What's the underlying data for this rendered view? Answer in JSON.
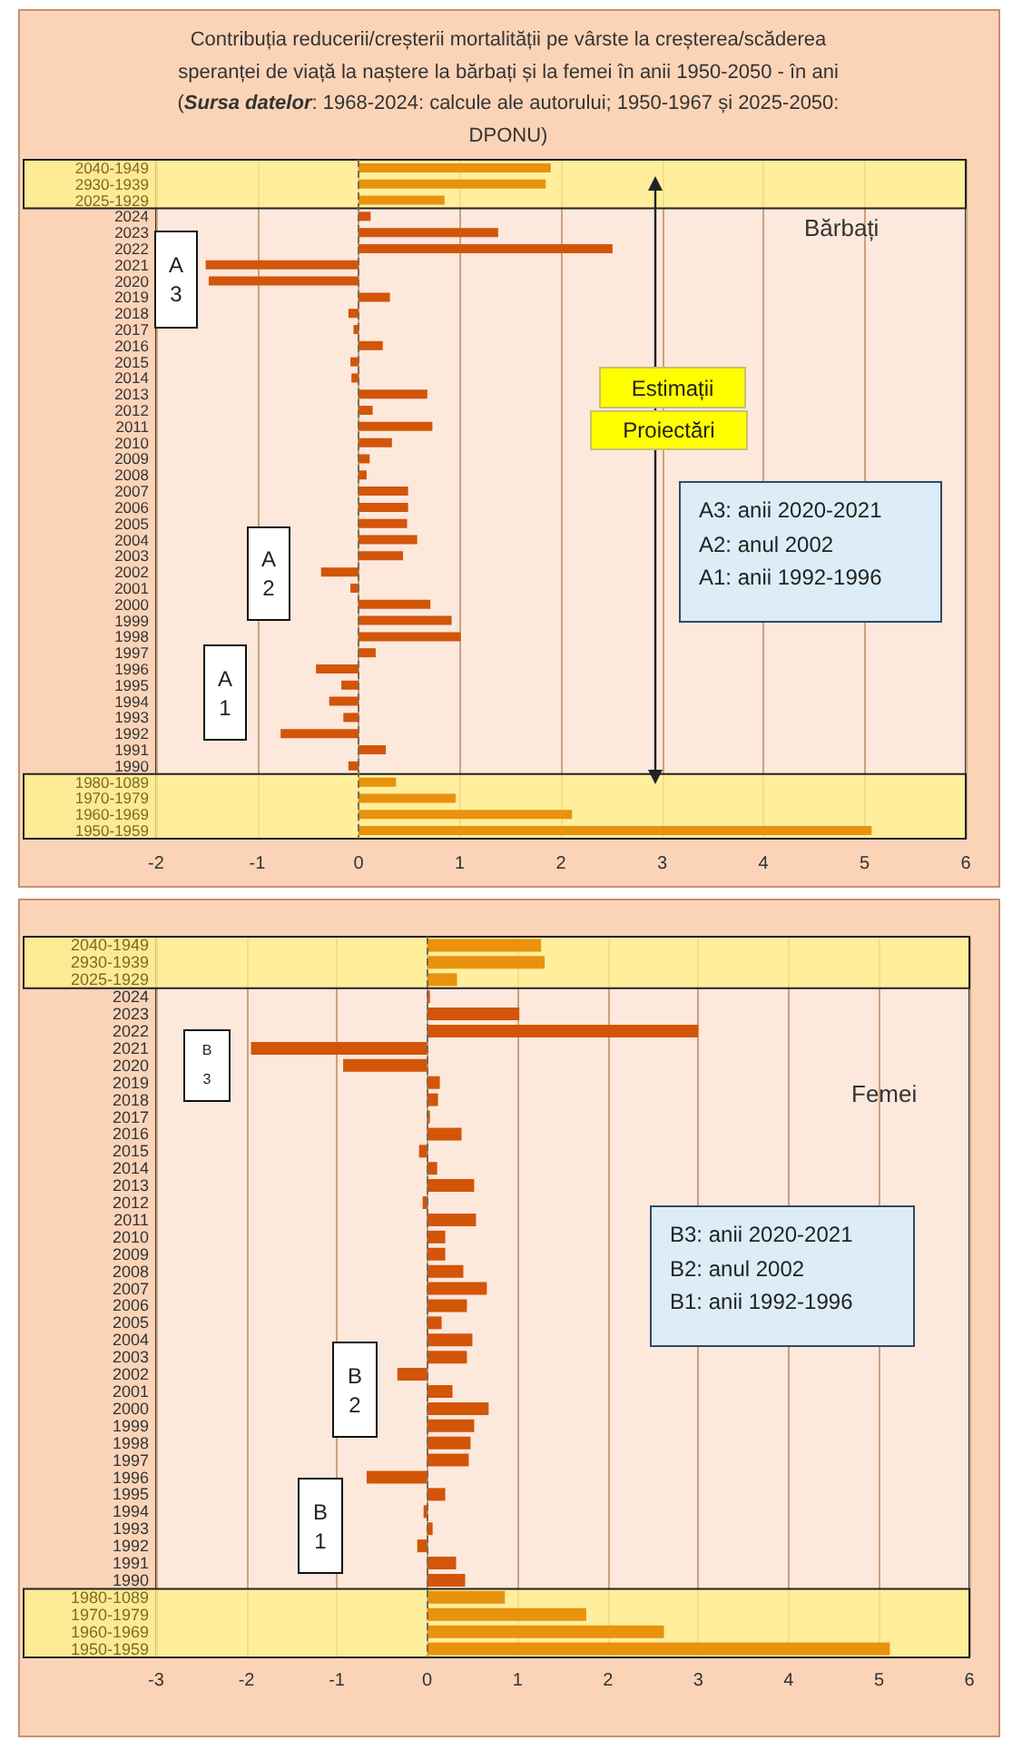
{
  "chart_data": [
    {
      "type": "bar",
      "orientation": "horizontal",
      "title": "Contribuția reducerii/creșterii mortalității pe vârste la creșterea/scăderea speranței de viață la naștere la bărbați și la femei în anii 1950-2050 - în ani",
      "subtitle": "(Sursa datelor: 1968-2024: calcule ale autorului; 1950-1967 și 2025-2050: DPONU)",
      "categories": [
        "2040-1949",
        "2930-1939",
        "2025-1929",
        "2024",
        "2023",
        "2022",
        "2021",
        "2020",
        "2019",
        "2018",
        "2017",
        "2016",
        "2015",
        "2014",
        "2013",
        "2012",
        "2011",
        "2010",
        "2009",
        "2008",
        "2007",
        "2006",
        "2005",
        "2004",
        "2003",
        "2002",
        "2001",
        "2000",
        "1999",
        "1998",
        "1997",
        "1996",
        "1995",
        "1994",
        "1993",
        "1992",
        "1991",
        "1990",
        "1980-1089",
        "1970-1979",
        "1960-1969",
        "1950-1959"
      ],
      "values": [
        1.9,
        1.85,
        0.85,
        0.12,
        1.38,
        2.51,
        -1.51,
        -1.48,
        0.31,
        -0.1,
        -0.05,
        0.24,
        -0.08,
        -0.07,
        0.68,
        0.14,
        0.73,
        0.33,
        0.11,
        0.08,
        0.49,
        0.49,
        0.48,
        0.58,
        0.44,
        -0.37,
        -0.08,
        0.71,
        0.92,
        1.01,
        0.17,
        -0.42,
        -0.17,
        -0.29,
        -0.15,
        -0.77,
        0.27,
        -0.1,
        0.37,
        0.96,
        2.11,
        5.07
      ],
      "colors": [
        "#e8920e",
        "#e8920e",
        "#e8920e",
        "#d25508",
        "#d25508",
        "#d25508",
        "#d25508",
        "#d25508",
        "#d25508",
        "#d25508",
        "#d25508",
        "#d25508",
        "#d25508",
        "#d25508",
        "#d25508",
        "#d25508",
        "#d25508",
        "#d25508",
        "#d25508",
        "#d25508",
        "#d25508",
        "#d25508",
        "#d25508",
        "#d25508",
        "#d25508",
        "#d25508",
        "#d25508",
        "#d25508",
        "#d25508",
        "#d25508",
        "#d25508",
        "#d25508",
        "#d25508",
        "#d25508",
        "#d25508",
        "#d25508",
        "#d25508",
        "#d25508",
        "#e8920e",
        "#e8920e",
        "#e8920e",
        "#e8920e"
      ],
      "xlim": [
        -2,
        6
      ],
      "xticks": [
        -2,
        -1,
        0,
        1,
        2,
        3,
        4,
        5,
        6
      ],
      "grid": "x",
      "ref_lines": [
        {
          "axis": "x",
          "value": 0,
          "color": "#7a6a5a",
          "line_style": "dashed"
        }
      ],
      "bands": [
        {
          "axis": "y",
          "from": "2040-1949",
          "to": "2025-1929",
          "color": "#fff08a"
        },
        {
          "axis": "y",
          "from": "1980-1089",
          "to": "1950-1959",
          "color": "#fff08a"
        }
      ],
      "annotations": [
        "Bărbați",
        "Estimații",
        "Proiectări",
        "A3: anii 2020-2021",
        "A2: anul 2002",
        "A1: anii 1992-1996",
        "A\n3",
        "A\n2",
        "A\n1"
      ]
    },
    {
      "type": "bar",
      "orientation": "horizontal",
      "categories": [
        "2040-1949",
        "2930-1939",
        "2025-1929",
        "2024",
        "2023",
        "2022",
        "2021",
        "2020",
        "2019",
        "2018",
        "2017",
        "2016",
        "2015",
        "2014",
        "2013",
        "2012",
        "2011",
        "2010",
        "2009",
        "2008",
        "2007",
        "2006",
        "2005",
        "2004",
        "2003",
        "2002",
        "2001",
        "2000",
        "1999",
        "1998",
        "1997",
        "1996",
        "1995",
        "1994",
        "1993",
        "1992",
        "1991",
        "1990",
        "1980-1089",
        "1970-1979",
        "1960-1969",
        "1950-1959"
      ],
      "values": [
        1.26,
        1.3,
        0.33,
        0.03,
        1.02,
        3.0,
        -1.95,
        -0.93,
        0.14,
        0.12,
        0.03,
        0.38,
        -0.09,
        0.11,
        0.52,
        -0.05,
        0.54,
        0.2,
        0.2,
        0.4,
        0.66,
        0.44,
        0.16,
        0.5,
        0.44,
        -0.33,
        0.28,
        0.68,
        0.52,
        0.48,
        0.46,
        -0.67,
        0.2,
        -0.04,
        0.06,
        -0.11,
        0.32,
        0.42,
        0.86,
        1.76,
        2.62,
        5.12
      ],
      "colors": [
        "#e8920e",
        "#e8920e",
        "#e8920e",
        "#d25508",
        "#d25508",
        "#d25508",
        "#d25508",
        "#d25508",
        "#d25508",
        "#d25508",
        "#d25508",
        "#d25508",
        "#d25508",
        "#d25508",
        "#d25508",
        "#d25508",
        "#d25508",
        "#d25508",
        "#d25508",
        "#d25508",
        "#d25508",
        "#d25508",
        "#d25508",
        "#d25508",
        "#d25508",
        "#d25508",
        "#d25508",
        "#d25508",
        "#d25508",
        "#d25508",
        "#d25508",
        "#d25508",
        "#d25508",
        "#d25508",
        "#d25508",
        "#d25508",
        "#d25508",
        "#d25508",
        "#e8920e",
        "#e8920e",
        "#e8920e",
        "#e8920e"
      ],
      "xlim": [
        -3,
        6
      ],
      "xticks": [
        -3,
        -2,
        -1,
        0,
        1,
        2,
        3,
        4,
        5,
        6
      ],
      "grid": "x",
      "ref_lines": [
        {
          "axis": "x",
          "value": 0,
          "color": "#7a6a5a",
          "line_style": "dashed"
        }
      ],
      "bands": [
        {
          "axis": "y",
          "from": "2040-1949",
          "to": "2025-1929",
          "color": "#fff08a"
        },
        {
          "axis": "y",
          "from": "1980-1089",
          "to": "1950-1959",
          "color": "#fff08a"
        }
      ],
      "annotations": [
        "Femei",
        "B3: anii 2020-2021",
        "B2: anul 2002",
        "B1: anii 1992-1996",
        "B\n3",
        "B\n2",
        "B\n1"
      ]
    }
  ]
}
